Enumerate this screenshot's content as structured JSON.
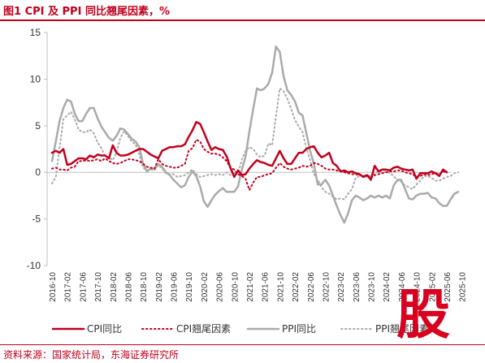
{
  "header": {
    "title": "图1  CPI 及 PPI 同比翘尾因素，%"
  },
  "footer": {
    "source": "资料来源：国家统计局，东海证券研究所"
  },
  "watermark": {
    "text": "股"
  },
  "chart_data": {
    "type": "line",
    "ylim": [
      -10,
      15
    ],
    "yticks": [
      15,
      10,
      5,
      0,
      -5,
      -10
    ],
    "legend_position": "bottom",
    "grid": false,
    "x_tick_labels": [
      "2016-10",
      "2017-02",
      "2017-06",
      "2017-10",
      "2018-02",
      "2018-06",
      "2018-10",
      "2019-02",
      "2019-06",
      "2019-10",
      "2020-02",
      "2020-06",
      "2020-10",
      "2021-02",
      "2021-06",
      "2021-10",
      "2022-02",
      "2022-06",
      "2022-10",
      "2023-02",
      "2023-06",
      "2023-10",
      "2024-02",
      "2024-06",
      "2024-10",
      "2025-02",
      "2025-06",
      "2025-10"
    ],
    "x_start": "2016-10",
    "series": [
      {
        "name": "CPI同比",
        "color": "#c0001d",
        "style": "solid",
        "width": 2.5,
        "values": [
          2.1,
          2.3,
          2.1,
          2.5,
          0.8,
          0.9,
          1.2,
          1.5,
          1.5,
          1.4,
          1.8,
          1.6,
          1.9,
          1.8,
          1.8,
          1.5,
          2.9,
          2.1,
          1.8,
          1.8,
          1.9,
          2.1,
          2.3,
          2.5,
          2.5,
          2.2,
          1.9,
          1.7,
          1.5,
          2.3,
          2.5,
          2.7,
          2.7,
          2.8,
          2.8,
          3.0,
          3.8,
          4.5,
          5.4,
          5.2,
          4.3,
          3.3,
          2.4,
          2.7,
          2.5,
          2.4,
          1.7,
          0.5,
          -0.5,
          0.2,
          -0.3,
          -0.2,
          0.4,
          0.9,
          1.3,
          1.1,
          1.0,
          0.8,
          0.7,
          1.5,
          2.3,
          1.5,
          0.9,
          0.9,
          1.5,
          2.1,
          2.1,
          2.5,
          2.7,
          2.8,
          2.1,
          1.6,
          1.8,
          2.1,
          1.0,
          0.7,
          0.1,
          0.2,
          0.0,
          0.1,
          -0.1,
          -0.2,
          -0.5,
          -0.3,
          -0.8,
          0.7,
          0.1,
          0.3,
          0.3,
          0.2,
          0.5,
          0.6,
          0.4,
          0.3,
          0.2,
          0.3,
          -0.7,
          -0.1,
          -0.1,
          -0.1,
          0.1,
          -0.1,
          -0.4,
          0.3,
          0.0
        ],
        "data_label": "CPI同比"
      },
      {
        "name": "CPI翘尾因素",
        "color": "#c0001d",
        "style": "dotted",
        "width": 2,
        "values": [
          0.4,
          0.5,
          0.3,
          0.3,
          0.2,
          0.5,
          0.6,
          1.2,
          1.2,
          1.3,
          1.2,
          1.3,
          1.4,
          1.2,
          1.5,
          1.2,
          1.0,
          0.9,
          1.0,
          1.2,
          1.4,
          1.4,
          1.3,
          1.2,
          0.9,
          0.6,
          0.5,
          0.4,
          1.4,
          0.9,
          0.7,
          0.6,
          0.5,
          0.5,
          0.7,
          0.9,
          2.3,
          2.6,
          3.5,
          3.3,
          2.5,
          2.2,
          2.0,
          2.0,
          1.9,
          1.6,
          1.2,
          0.5,
          0.3,
          -0.2,
          -0.4,
          -0.7,
          -1.9,
          -1.1,
          -0.5,
          -0.5,
          -0.3,
          -0.2,
          -0.1,
          0.5,
          1.0,
          0.6,
          0.4,
          0.3,
          0.4,
          0.5,
          0.7,
          0.6,
          0.7,
          1.0,
          0.9,
          0.7,
          0.4,
          0.3,
          0.3,
          0.2,
          0.1,
          0.0,
          -0.1,
          -0.2,
          -0.2,
          -0.3,
          -0.4,
          -0.3,
          -0.6,
          -0.3,
          -0.2,
          -0.1,
          0.0,
          0.1,
          0.1,
          0.2,
          0.2,
          0.0,
          -0.1,
          -0.2,
          -0.5,
          -0.4,
          -0.2,
          -0.3,
          -0.2,
          -0.1,
          -0.2,
          0.1,
          0.0
        ]
      },
      {
        "name": "PPI同比",
        "color": "#aaaaaa",
        "style": "solid",
        "width": 2.5,
        "values": [
          1.2,
          3.3,
          5.5,
          6.9,
          7.8,
          7.6,
          6.3,
          5.5,
          5.5,
          6.3,
          6.9,
          6.9,
          5.8,
          4.9,
          4.3,
          3.7,
          3.4,
          3.9,
          4.7,
          4.6,
          4.1,
          3.6,
          3.3,
          2.7,
          0.9,
          0.1,
          0.4,
          0.4,
          0.9,
          0.6,
          0.0,
          -0.3,
          -0.8,
          -1.2,
          -1.6,
          -1.4,
          -0.5,
          0.1,
          -0.4,
          -1.5,
          -3.1,
          -3.7,
          -3.0,
          -2.4,
          -2.0,
          -1.7,
          -2.1,
          -2.1,
          -2.1,
          -1.5,
          0.3,
          1.7,
          4.4,
          6.8,
          9.0,
          8.8,
          9.0,
          9.5,
          10.7,
          13.5,
          12.9,
          10.3,
          8.8,
          8.3,
          7.6,
          6.4,
          6.1,
          4.2,
          2.3,
          0.9,
          -1.3,
          -1.3,
          -0.8,
          -1.4,
          -2.5,
          -3.6,
          -4.6,
          -5.4,
          -4.4,
          -3.0,
          -2.5,
          -2.7,
          -3.0,
          -2.8,
          -2.5,
          -2.7,
          -2.5,
          -2.7,
          -2.5,
          -2.8,
          -1.4,
          -0.8,
          -0.8,
          -1.8,
          -2.8,
          -2.9,
          -2.5,
          -2.3,
          -2.3,
          -2.2,
          -2.7,
          -2.8,
          -3.3,
          -3.6,
          -3.6,
          -2.9,
          -2.3,
          -2.1
        ]
      },
      {
        "name": "PPI翘尾因素",
        "color": "#aaaaaa",
        "style": "dotted",
        "width": 2,
        "values": [
          -1.2,
          -0.5,
          2.6,
          5.7,
          6.1,
          6.5,
          5.7,
          4.6,
          4.3,
          4.3,
          4.6,
          4.2,
          3.2,
          2.6,
          1.7,
          1.6,
          1.3,
          2.1,
          3.7,
          4.4,
          3.9,
          3.3,
          3.0,
          1.9,
          0.5,
          0.2,
          0.3,
          0.2,
          0.8,
          0.4,
          -0.1,
          -0.2,
          -0.2,
          -0.5,
          -0.4,
          -0.3,
          0.0,
          0.3,
          -0.2,
          -0.5,
          -0.4,
          -0.3,
          -0.2,
          -0.3,
          -0.2,
          -0.3,
          0.0,
          -0.3,
          -0.1,
          -0.2,
          1.4,
          2.3,
          2.7,
          2.5,
          1.9,
          1.6,
          1.8,
          3.1,
          2.9,
          6.0,
          9.0,
          8.7,
          7.9,
          6.8,
          5.6,
          4.9,
          4.3,
          2.6,
          1.3,
          -0.2,
          -0.8,
          -1.6,
          -2.1,
          -2.3,
          -2.6,
          -2.9,
          -2.8,
          -2.9,
          -2.3,
          -1.8,
          -0.6,
          -0.4,
          -0.4,
          -0.5,
          -0.4,
          -0.1,
          0.1,
          0.0,
          0.1,
          -0.1,
          -0.4,
          -0.9,
          -1.0,
          -1.4,
          -1.6,
          -1.8,
          -1.3,
          -0.9,
          -0.4,
          -0.4,
          -0.6,
          -0.9,
          -0.9,
          -0.7,
          -0.5,
          -0.4,
          -0.1,
          0.0
        ]
      }
    ]
  }
}
